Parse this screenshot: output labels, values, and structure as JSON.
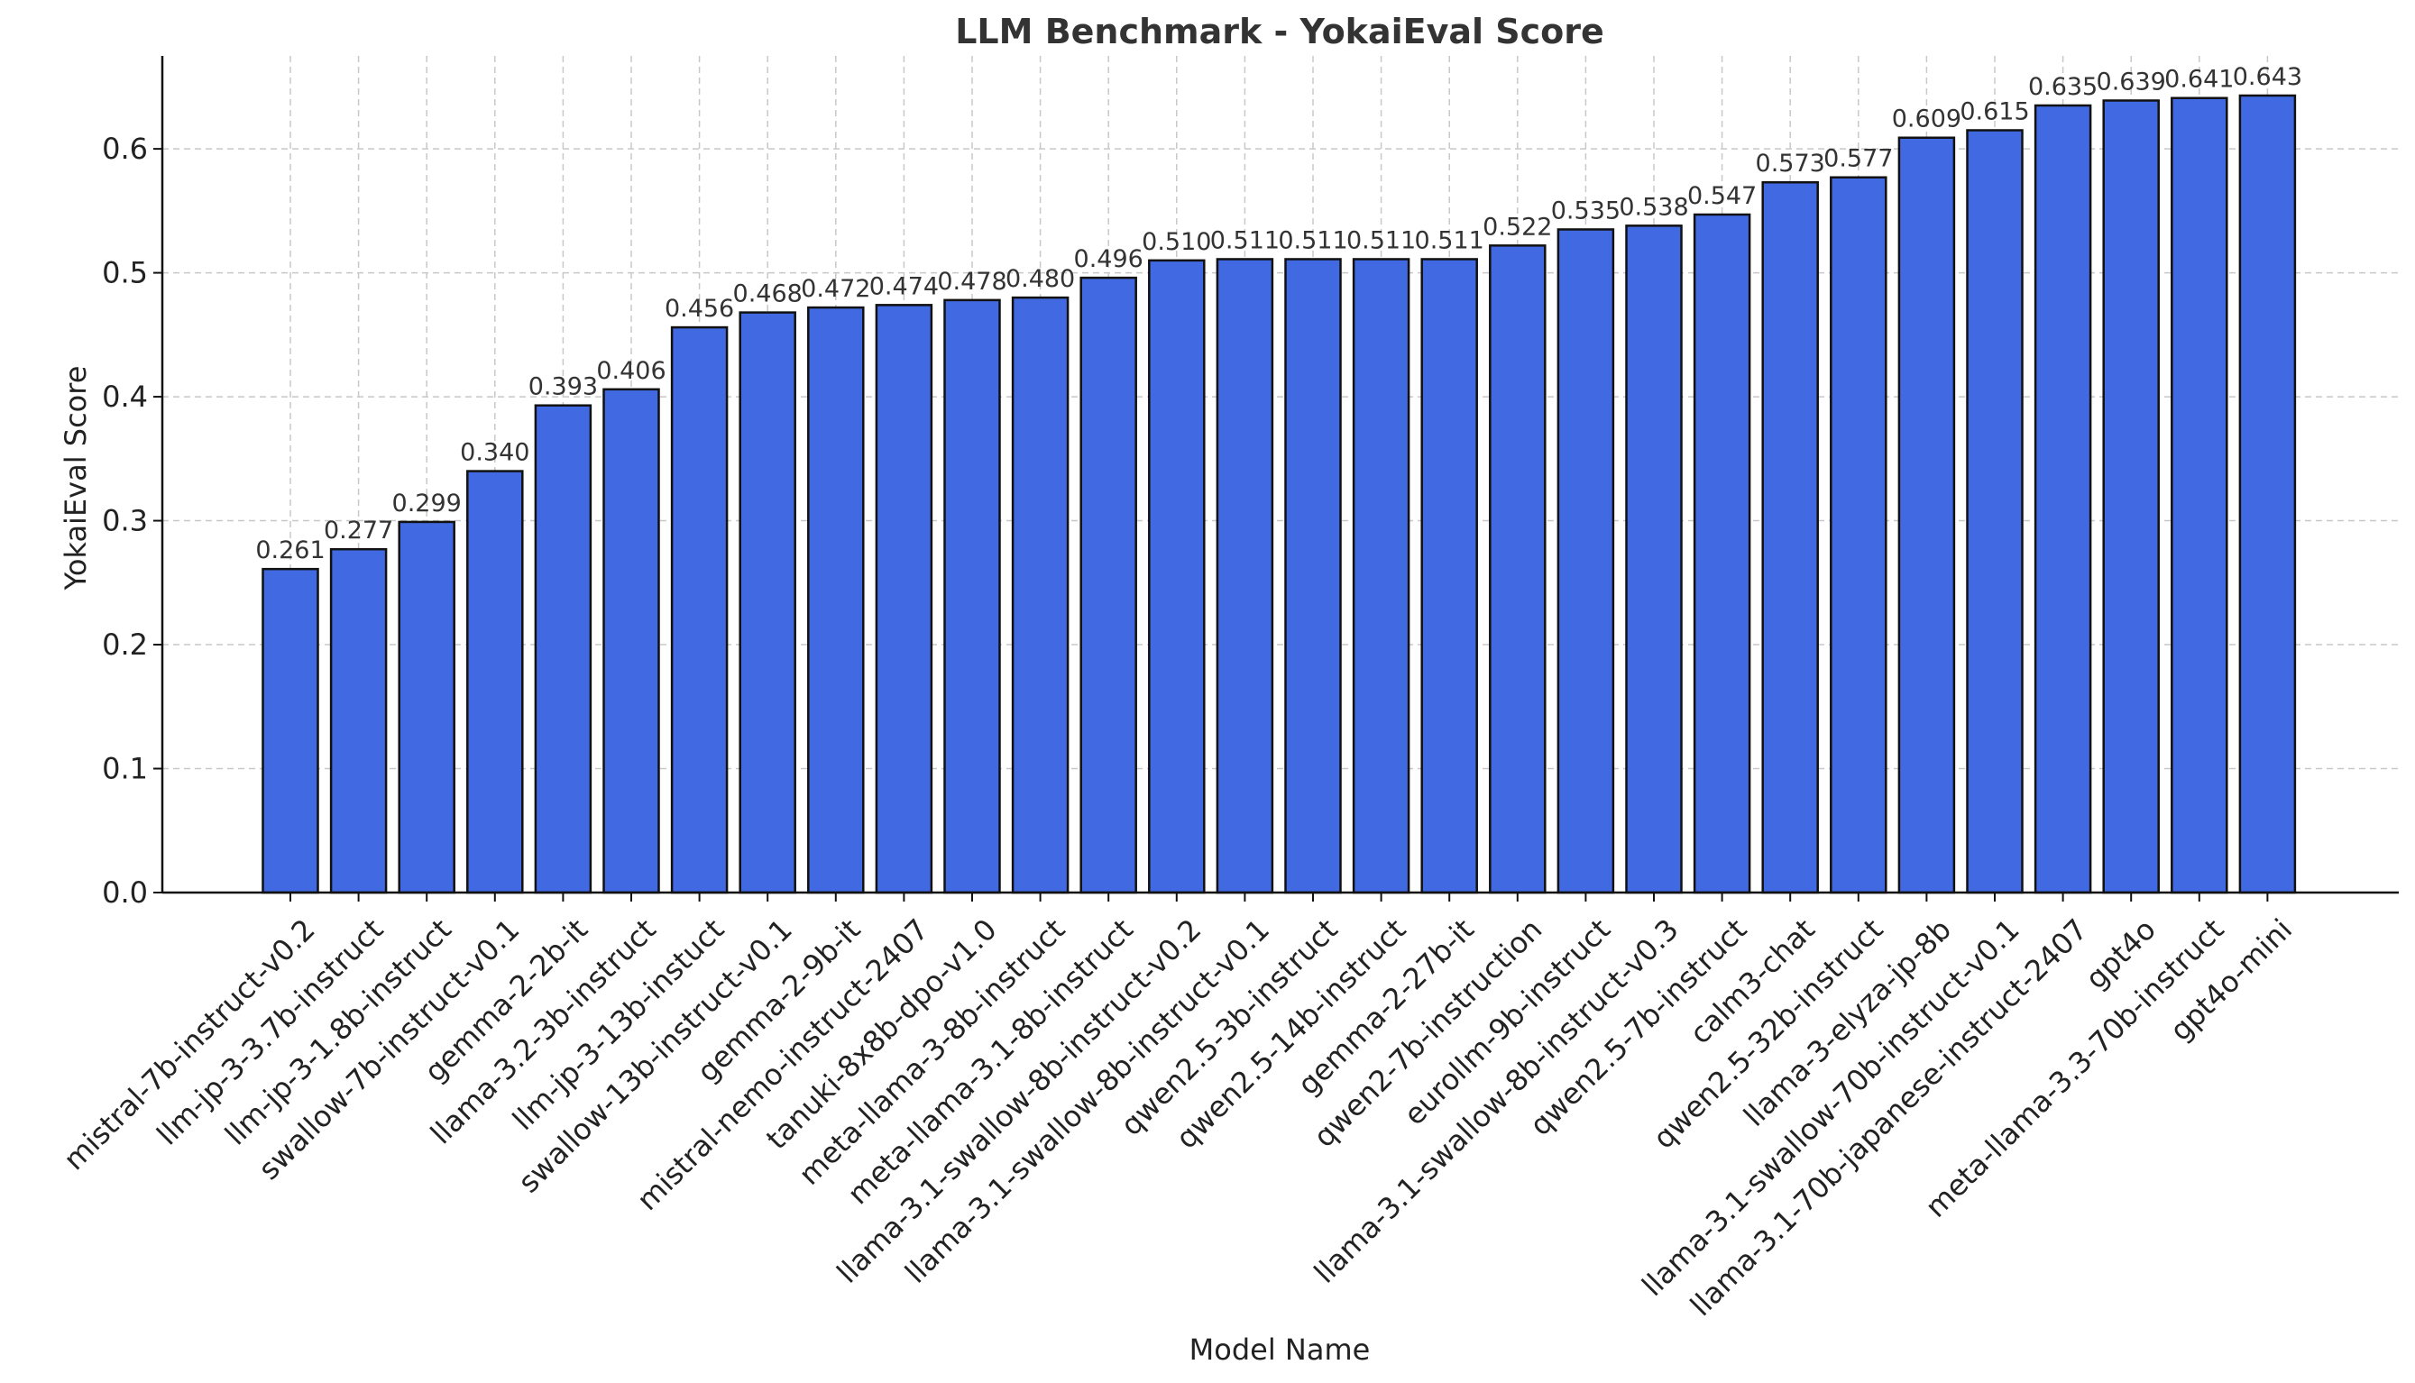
{
  "chart_data": {
    "type": "bar",
    "title": "LLM Benchmark - YokaiEval Score",
    "xlabel": "Model Name",
    "ylabel": "YokaiEval Score",
    "ylim": [
      0,
      0.675
    ],
    "yticks": [
      "0.0",
      "0.1",
      "0.2",
      "0.3",
      "0.4",
      "0.5",
      "0.6"
    ],
    "grid": true,
    "bar_color": "#4169e1",
    "categories": [
      "mistral-7b-instruct-v0.2",
      "llm-jp-3-3.7b-instruct",
      "llm-jp-3-1.8b-instruct",
      "swallow-7b-instruct-v0.1",
      "gemma-2-2b-it",
      "llama-3.2-3b-instruct",
      "llm-jp-3-13b-instuct",
      "swallow-13b-instruct-v0.1",
      "gemma-2-9b-it",
      "mistral-nemo-instruct-2407",
      "tanuki-8x8b-dpo-v1.0",
      "meta-llama-3-8b-instruct",
      "meta-llama-3.1-8b-instruct",
      "llama-3.1-swallow-8b-instruct-v0.2",
      "llama-3.1-swallow-8b-instruct-v0.1",
      "qwen2.5-3b-instruct",
      "qwen2.5-14b-instruct",
      "gemma-2-27b-it",
      "qwen2-7b-instruction",
      "eurollm-9b-instruct",
      "llama-3.1-swallow-8b-instruct-v0.3",
      "qwen2.5-7b-instruct",
      "calm3-chat",
      "qwen2.5-32b-instruct",
      "llama-3-elyza-jp-8b",
      "llama-3.1-swallow-70b-instruct-v0.1",
      "llama-3.1-70b-japanese-instruct-2407",
      "gpt4o",
      "meta-llama-3.3-70b-instruct",
      "gpt4o-mini"
    ],
    "values": [
      0.261,
      0.277,
      0.299,
      0.34,
      0.393,
      0.406,
      0.456,
      0.468,
      0.472,
      0.474,
      0.478,
      0.48,
      0.496,
      0.51,
      0.511,
      0.511,
      0.511,
      0.511,
      0.522,
      0.535,
      0.538,
      0.547,
      0.573,
      0.577,
      0.609,
      0.615,
      0.635,
      0.639,
      0.641,
      0.643
    ],
    "value_labels": [
      "0.261",
      "0.277",
      "0.299",
      "0.340",
      "0.393",
      "0.406",
      "0.456",
      "0.468",
      "0.472",
      "0.474",
      "0.478",
      "0.480",
      "0.496",
      "0.510",
      "0.511",
      "0.511",
      "0.511",
      "0.511",
      "0.522",
      "0.535",
      "0.538",
      "0.547",
      "0.573",
      "0.577",
      "0.609",
      "0.615",
      "0.635",
      "0.639",
      "0.641",
      "0.643"
    ]
  }
}
